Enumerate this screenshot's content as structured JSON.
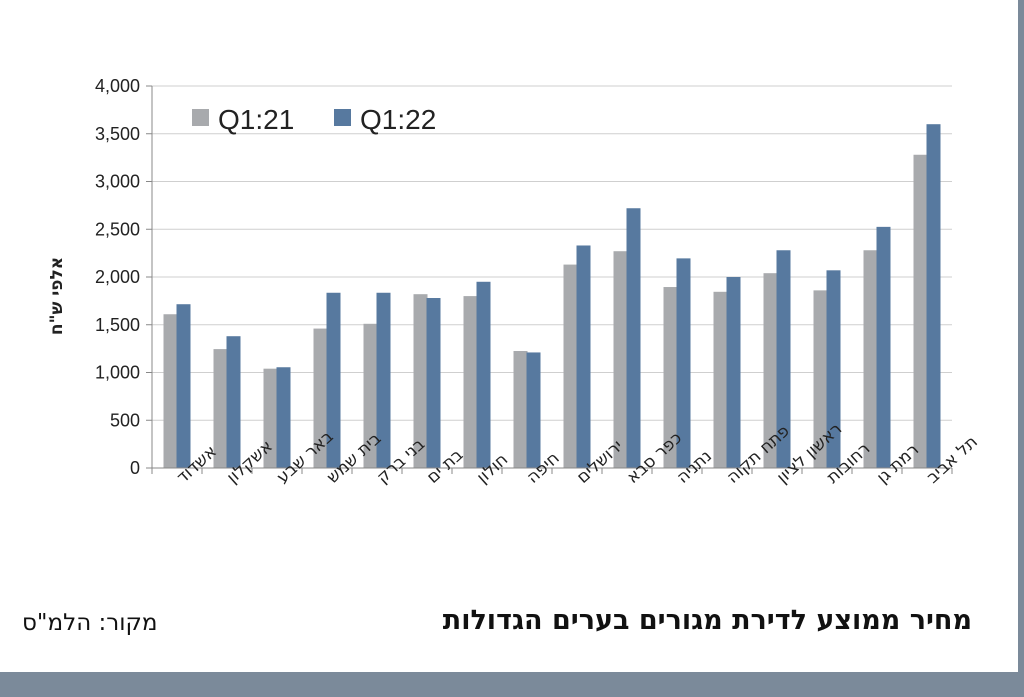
{
  "chart_data": {
    "type": "bar",
    "ylabel": "אלפי ש\"ח",
    "ylim": [
      0,
      4000
    ],
    "ytick_step": 500,
    "yticks": [
      "0",
      "500",
      "1,000",
      "1,500",
      "2,000",
      "2,500",
      "3,000",
      "3,500",
      "4,000"
    ],
    "grid": true,
    "legend_position": "top-left",
    "categories": [
      "אשדוד",
      "אשקלון",
      "באר שבע",
      "בית שמש",
      "בני ברק",
      "בת ים",
      "חולון",
      "חיפה",
      "ירושלים",
      "כפר סבא",
      "נתניה",
      "פתח תקוה",
      "ראשון לציון",
      "רחובות",
      "רמת גן",
      "תל אביב"
    ],
    "series": [
      {
        "name": "Q1:21",
        "color": "#a8aaad",
        "values": [
          1610,
          1245,
          1040,
          1460,
          1510,
          1820,
          1800,
          1225,
          2130,
          2270,
          1895,
          1845,
          2040,
          1860,
          2280,
          3280
        ]
      },
      {
        "name": "Q1:22",
        "color": "#57799f",
        "values": [
          1715,
          1380,
          1055,
          1835,
          1835,
          1780,
          1950,
          1210,
          2330,
          2720,
          2195,
          2000,
          2280,
          2070,
          2525,
          3600
        ]
      }
    ]
  },
  "caption": {
    "title": "מחיר ממוצע לדירת מגורים בערים הגדולות",
    "source": "מקור: הלמ\"ס"
  }
}
